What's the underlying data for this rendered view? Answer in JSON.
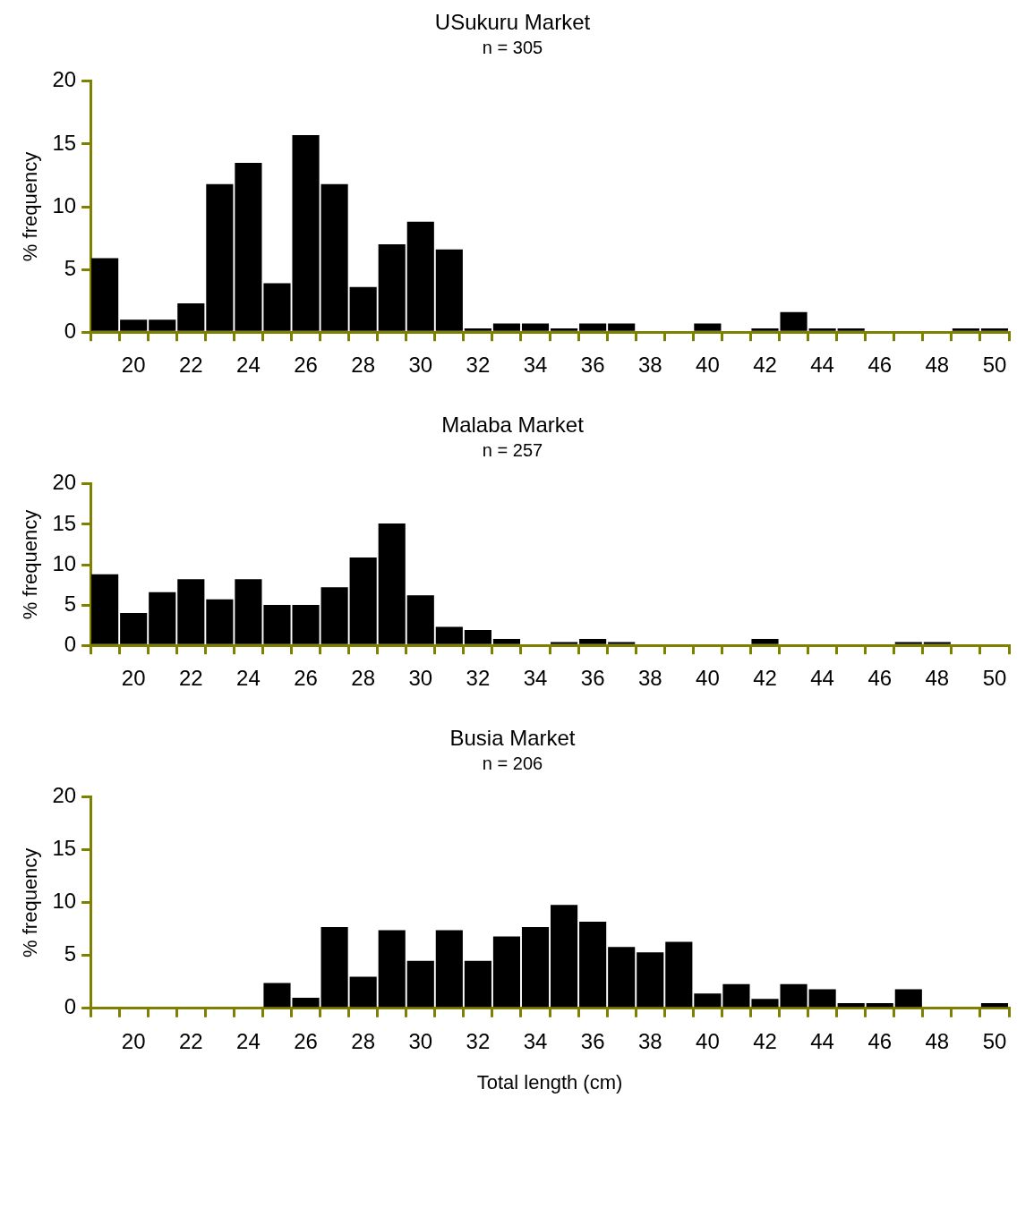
{
  "chart_data": [
    {
      "type": "bar",
      "title": "USukuru Market",
      "subtitle": "n = 305",
      "ylabel": "% frequency",
      "categories": [
        null,
        "20",
        null,
        "22",
        null,
        "24",
        null,
        "26",
        null,
        "28",
        null,
        "30",
        null,
        "32",
        null,
        "34",
        null,
        "36",
        null,
        "38",
        null,
        "40",
        null,
        "42",
        null,
        "44",
        null,
        "46",
        null,
        "48",
        null,
        "50"
      ],
      "series": [
        {
          "color": "#000000",
          "values": [
            5.9,
            1.0,
            1.0,
            2.3,
            11.8,
            13.5,
            3.9,
            15.7,
            11.8,
            3.6,
            7.0,
            8.8,
            6.6,
            0.3,
            0.7,
            0.7,
            0.3,
            0.7,
            0.7,
            0,
            0,
            0.7,
            0,
            0.3,
            1.6,
            0.3,
            0.3,
            0,
            0,
            0,
            0.3,
            0.3
          ]
        }
      ],
      "ylim": [
        0,
        20
      ],
      "yticks": [
        0,
        5,
        10,
        15,
        20
      ],
      "grid": false,
      "legend": false
    },
    {
      "type": "bar",
      "title": "Malaba Market",
      "subtitle": "n = 257",
      "ylabel": "% frequency",
      "categories": [
        null,
        "20",
        null,
        "22",
        null,
        "24",
        null,
        "26",
        null,
        "28",
        null,
        "30",
        null,
        "32",
        null,
        "34",
        null,
        "36",
        null,
        "38",
        null,
        "40",
        null,
        "42",
        null,
        "44",
        null,
        "46",
        null,
        "48",
        null,
        "50"
      ],
      "series": [
        {
          "color": "#000000",
          "values": [
            8.8,
            4.0,
            6.6,
            8.2,
            5.7,
            8.2,
            5.0,
            5.0,
            7.2,
            10.9,
            15.1,
            6.2,
            2.3,
            1.9,
            0.8,
            0,
            0.4,
            0.8,
            0.4,
            0,
            0,
            0,
            0,
            0.8,
            0,
            0,
            0,
            0,
            0.4,
            0.4,
            0,
            0
          ]
        }
      ],
      "ylim": [
        0,
        20
      ],
      "yticks": [
        0,
        5,
        10,
        15,
        20
      ],
      "grid": false,
      "legend": false
    },
    {
      "type": "bar",
      "title": "Busia Market",
      "subtitle": "n = 206",
      "ylabel": "% frequency",
      "xlabel": "Total length (cm)",
      "categories": [
        null,
        "20",
        null,
        "22",
        null,
        "24",
        null,
        "26",
        null,
        "28",
        null,
        "30",
        null,
        "32",
        null,
        "34",
        null,
        "36",
        null,
        "38",
        null,
        "40",
        null,
        "42",
        null,
        "44",
        null,
        "46",
        null,
        "48",
        null,
        "50"
      ],
      "series": [
        {
          "color": "#000000",
          "values": [
            0,
            0,
            0,
            0,
            0,
            0,
            2.4,
            1.0,
            7.7,
            3.0,
            7.4,
            4.5,
            7.4,
            4.5,
            6.8,
            7.7,
            9.8,
            8.2,
            5.8,
            5.3,
            6.3,
            1.4,
            2.3,
            0.9,
            2.3,
            1.8,
            0.5,
            0.5,
            1.8,
            0,
            0,
            0.5
          ]
        }
      ],
      "ylim": [
        0,
        20
      ],
      "yticks": [
        0,
        5,
        10,
        15,
        20
      ],
      "grid": false,
      "legend": false
    }
  ]
}
